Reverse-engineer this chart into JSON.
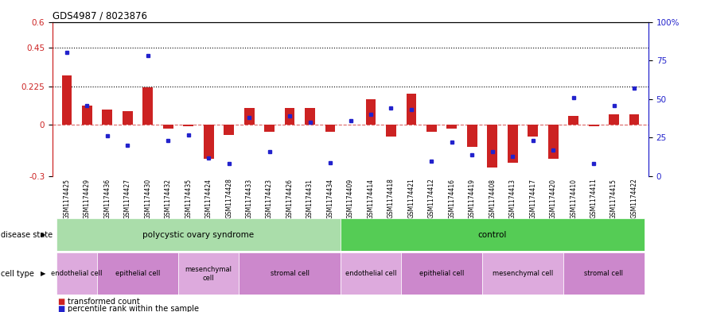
{
  "title": "GDS4987 / 8023876",
  "samples": [
    "GSM1174425",
    "GSM1174429",
    "GSM1174436",
    "GSM1174427",
    "GSM1174430",
    "GSM1174432",
    "GSM1174435",
    "GSM1174424",
    "GSM1174428",
    "GSM1174433",
    "GSM1174423",
    "GSM1174426",
    "GSM1174431",
    "GSM1174434",
    "GSM1174409",
    "GSM1174414",
    "GSM1174418",
    "GSM1174421",
    "GSM1174412",
    "GSM1174416",
    "GSM1174419",
    "GSM1174408",
    "GSM1174413",
    "GSM1174417",
    "GSM1174420",
    "GSM1174410",
    "GSM1174411",
    "GSM1174415",
    "GSM1174422"
  ],
  "red_values": [
    0.29,
    0.11,
    0.09,
    0.08,
    0.22,
    -0.02,
    -0.01,
    -0.2,
    -0.06,
    0.1,
    -0.04,
    0.1,
    0.1,
    -0.04,
    0.0,
    0.15,
    -0.07,
    0.18,
    -0.04,
    -0.02,
    -0.13,
    -0.25,
    -0.22,
    -0.07,
    -0.2,
    0.05,
    -0.01,
    0.06,
    0.06
  ],
  "blue_values": [
    80,
    46,
    26,
    20,
    78,
    23,
    27,
    12,
    8,
    38,
    16,
    39,
    35,
    9,
    36,
    40,
    44,
    43,
    10,
    22,
    14,
    16,
    13,
    23,
    17,
    51,
    8,
    46,
    57
  ],
  "ylim_left": [
    -0.3,
    0.6
  ],
  "ylim_right": [
    0,
    100
  ],
  "yticks_left": [
    -0.3,
    0.0,
    0.225,
    0.45,
    0.6
  ],
  "ytick_labels_left": [
    "-0.3",
    "0",
    "0.225",
    "0.45",
    "0.6"
  ],
  "yticks_right": [
    0,
    25,
    50,
    75,
    100
  ],
  "ytick_labels_right": [
    "0",
    "25",
    "50",
    "75",
    "100%"
  ],
  "hlines": [
    0.225,
    0.45
  ],
  "red_color": "#cc2222",
  "blue_color": "#2222cc",
  "disease_state_pcos_color": "#aaddaa",
  "disease_state_ctrl_color": "#55cc55",
  "disease_states": [
    "polycystic ovary syndrome",
    "control"
  ],
  "disease_state_ranges": [
    [
      0,
      14
    ],
    [
      14,
      29
    ]
  ],
  "cell_types_pcos": [
    {
      "label": "endothelial cell",
      "range": [
        0,
        2
      ]
    },
    {
      "label": "epithelial cell",
      "range": [
        2,
        6
      ]
    },
    {
      "label": "mesenchymal\ncell",
      "range": [
        6,
        9
      ]
    },
    {
      "label": "stromal cell",
      "range": [
        9,
        14
      ]
    }
  ],
  "cell_types_control": [
    {
      "label": "endothelial cell",
      "range": [
        14,
        17
      ]
    },
    {
      "label": "epithelial cell",
      "range": [
        17,
        21
      ]
    },
    {
      "label": "mesenchymal cell",
      "range": [
        21,
        25
      ]
    },
    {
      "label": "stromal cell",
      "range": [
        25,
        29
      ]
    }
  ],
  "cell_type_colors": [
    "#ddaadd",
    "#cc88cc"
  ],
  "background_color": "#ffffff",
  "tick_area_color": "#d8d8d8"
}
